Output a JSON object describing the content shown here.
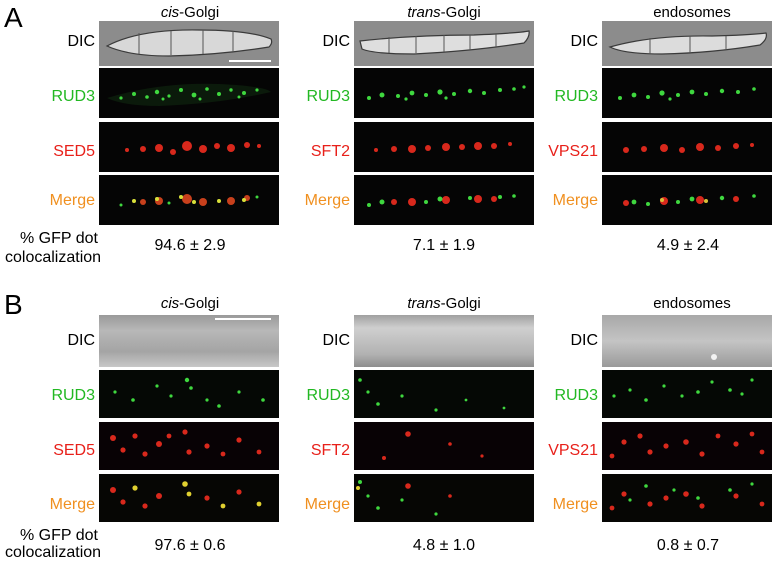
{
  "panels": [
    {
      "letter": "A",
      "headers": [
        {
          "italic": "cis",
          "rest": "-Golgi"
        },
        {
          "italic": "trans",
          "rest": "-Golgi"
        },
        {
          "italic": "",
          "rest": "endosomes"
        }
      ],
      "row_labels": {
        "dic": "DIC",
        "rud3": "RUD3",
        "merge": "Merge",
        "markers": [
          "SED5",
          "SFT2",
          "VPS21"
        ]
      },
      "colocalization_label_1": "% GFP dot",
      "colocalization_label_2": "colocalization",
      "values": [
        "94.6 ± 2.9",
        "7.1 ± 1.9",
        "4.9 ± 2.4"
      ]
    },
    {
      "letter": "B",
      "headers": [
        {
          "italic": "cis",
          "rest": "-Golgi"
        },
        {
          "italic": "trans",
          "rest": "-Golgi"
        },
        {
          "italic": "",
          "rest": "endosomes"
        }
      ],
      "row_labels": {
        "dic": "DIC",
        "rud3": "RUD3",
        "merge": "Merge",
        "markers": [
          "SED5",
          "SFT2",
          "VPS21"
        ]
      },
      "colocalization_label_1": "% GFP dot",
      "colocalization_label_2": "colocalization",
      "values": [
        "97.6 ± 0.6",
        "4.8 ± 1.0",
        "0.8 ± 0.7"
      ]
    }
  ],
  "colors": {
    "green_label": "#22b822",
    "red_label": "#e8201a",
    "orange_label": "#f09020",
    "image_bg": "#050505"
  }
}
